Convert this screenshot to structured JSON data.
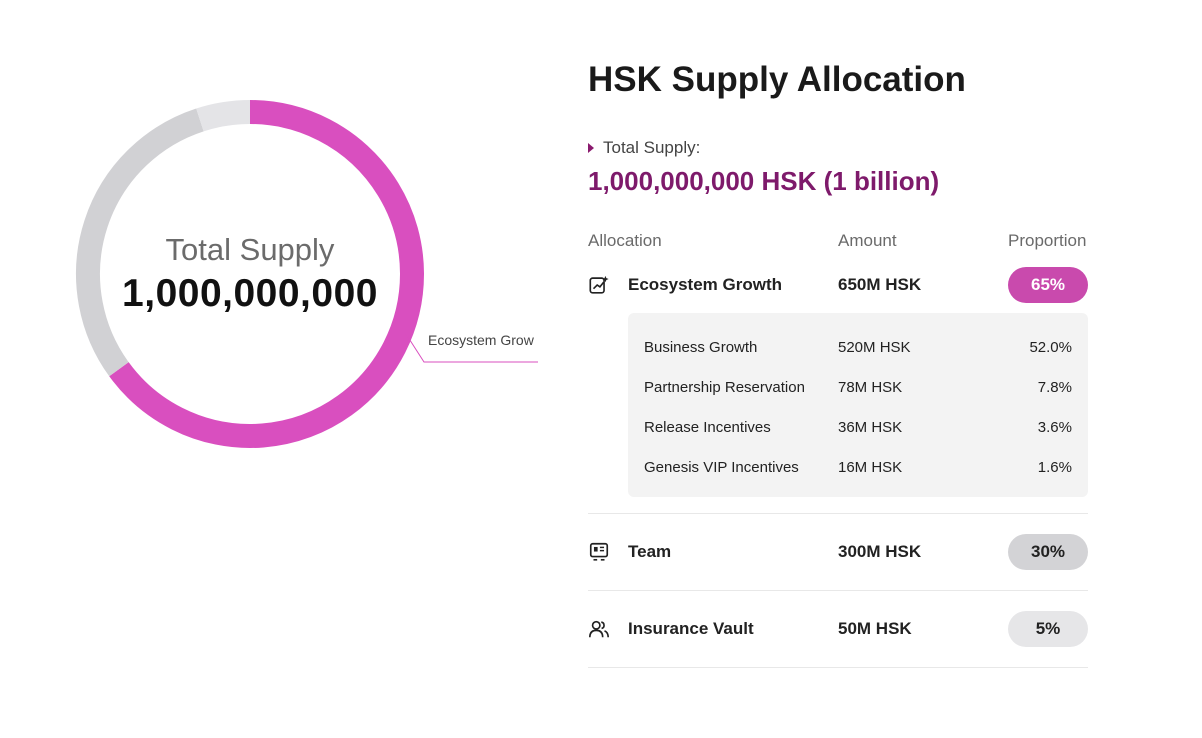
{
  "chart": {
    "center_label": "Total Supply",
    "center_value": "1,000,000,000",
    "callout": "Ecosystem Grow",
    "segments": [
      {
        "name": "Ecosystem Growth",
        "percent": 65,
        "color": "#d94fbf"
      },
      {
        "name": "Team",
        "percent": 30,
        "color": "#d1d1d4"
      },
      {
        "name": "Insurance Vault",
        "percent": 5,
        "color": "#e4e4e7"
      }
    ]
  },
  "title": "HSK Supply Allocation",
  "supply": {
    "label": "Total Supply:",
    "value": "1,000,000,000 HSK (1 billion)"
  },
  "table": {
    "headers": [
      "Allocation",
      "Amount",
      "Proportion"
    ],
    "rows": [
      {
        "name": "Ecosystem Growth",
        "amount": "650M HSK",
        "proportion": "65%",
        "icon": "growth-icon",
        "pill_color": "#c94aad",
        "pill_text_color": "#ffffff"
      },
      {
        "name": "Team",
        "amount": "300M HSK",
        "proportion": "30%",
        "icon": "team-icon",
        "pill_color": "#d3d3d6",
        "pill_text_color": "#222222"
      },
      {
        "name": "Insurance Vault",
        "amount": "50M HSK",
        "proportion": "5%",
        "icon": "users-icon",
        "pill_color": "#e6e6e8",
        "pill_text_color": "#222222"
      }
    ],
    "ecosystem_breakdown": [
      {
        "name": "Business Growth",
        "amount": "520M HSK",
        "proportion": "52.0%"
      },
      {
        "name": "Partnership Reservation",
        "amount": "78M HSK",
        "proportion": "7.8%"
      },
      {
        "name": "Release Incentives",
        "amount": "36M HSK",
        "proportion": "3.6%"
      },
      {
        "name": "Genesis VIP Incentives",
        "amount": "16M HSK",
        "proportion": "1.6%"
      }
    ]
  }
}
